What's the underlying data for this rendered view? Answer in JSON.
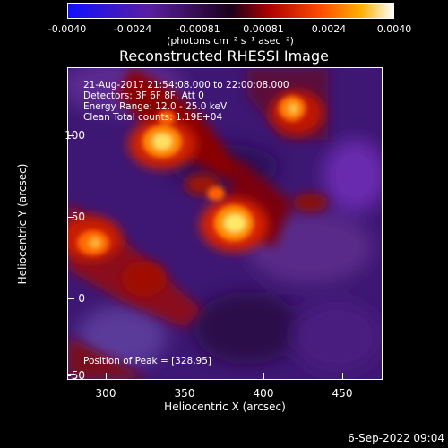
{
  "colorbar": {
    "ticks": [
      "-0.0040",
      "-0.0024",
      "-0.00081",
      "0.00081",
      "0.0024",
      "0.0040"
    ],
    "unit": "(photons cm⁻² s⁻¹ asec⁻²)"
  },
  "title": "Reconstructed RHESSI Image",
  "info": {
    "line1": "21-Aug-2017 21:54:08.000 to 22:00:08.000",
    "line2": "Detectors: 3F 6F 8F, Att 0",
    "line3": "Energy Range: 12.0 - 25.0 keV",
    "line4": "Clean    Total counts: 1.19E+04"
  },
  "axes": {
    "xlabel": "Heliocentric X (arcsec)",
    "ylabel": "Heliocentric Y (arcsec)",
    "xticks": [
      "300",
      "350",
      "400",
      "450"
    ],
    "yticks": [
      "100",
      "50",
      "0",
      "-50"
    ]
  },
  "peak": "Position of Peak = [328,95]",
  "footer": "6-Sep-2022 09:04",
  "colors": {
    "background": "#000000",
    "foreground": "#ffffff"
  }
}
